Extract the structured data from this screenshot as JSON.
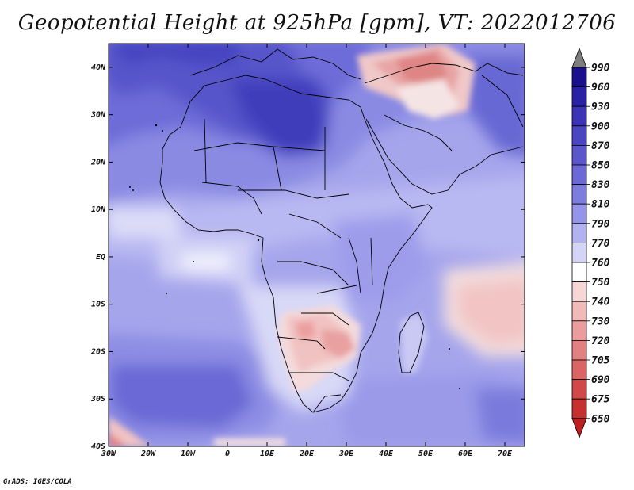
{
  "title": "Geopotential Height at 925hPa [gpm], VT: 2022012706",
  "footer": "GrADS: IGES/COLA",
  "map": {
    "lon_range": [
      -30,
      75
    ],
    "lat_range": [
      -40,
      45
    ],
    "lon_ticks": [
      "30W",
      "20W",
      "10W",
      "0",
      "10E",
      "20E",
      "30E",
      "40E",
      "50E",
      "60E",
      "70E"
    ],
    "lat_ticks": [
      "40S",
      "30S",
      "20S",
      "10S",
      "EQ",
      "10N",
      "20N",
      "30N",
      "40N"
    ]
  },
  "colorbar": {
    "levels": [
      "990",
      "960",
      "930",
      "900",
      "870",
      "850",
      "830",
      "810",
      "790",
      "770",
      "760",
      "750",
      "740",
      "730",
      "720",
      "705",
      "690",
      "675",
      "650"
    ],
    "colors": [
      "#7d7d7d",
      "#1a0f8c",
      "#2a22a6",
      "#3b34b8",
      "#4a45c2",
      "#5a57cc",
      "#6a69d6",
      "#7d7ddf",
      "#9494e8",
      "#b2b2f0",
      "#d4d4f7",
      "#ffffff",
      "#f7d6d6",
      "#f2b9b9",
      "#eb9d9d",
      "#e38080",
      "#db6464",
      "#d24848",
      "#c83030",
      "#be1e1e"
    ]
  }
}
